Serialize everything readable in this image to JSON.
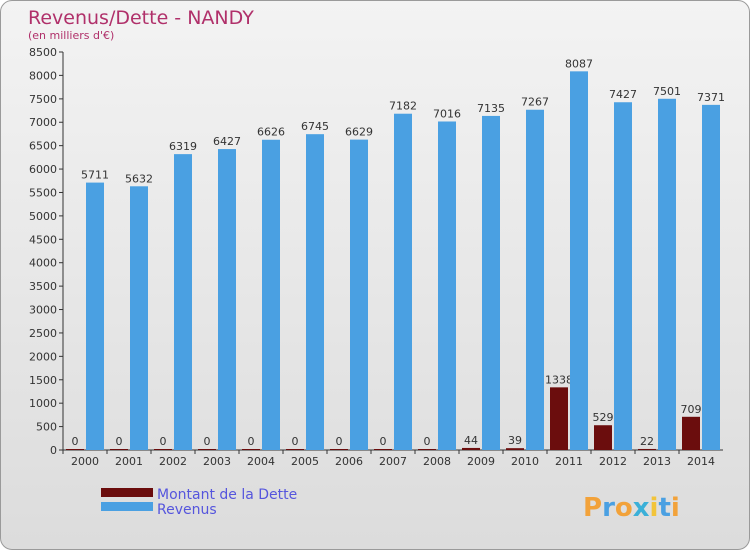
{
  "chart_data": {
    "type": "bar",
    "title": "Revenus/Dette - NANDY",
    "subtitle": "(en milliers d'€)",
    "categories": [
      "2000",
      "2001",
      "2002",
      "2003",
      "2004",
      "2005",
      "2006",
      "2007",
      "2008",
      "2009",
      "2010",
      "2011",
      "2012",
      "2013",
      "2014"
    ],
    "series": [
      {
        "name": "Montant de la Dette",
        "color": "#6b0d0d",
        "values": [
          0,
          0,
          0,
          0,
          0,
          0,
          0,
          0,
          0,
          44,
          39,
          1338,
          529,
          22,
          709
        ]
      },
      {
        "name": "Revenus",
        "color": "#4aa0e2",
        "values": [
          5711,
          5632,
          6319,
          6427,
          6626,
          6745,
          6629,
          7182,
          7016,
          7135,
          7267,
          8087,
          7427,
          7501,
          7371
        ]
      }
    ],
    "ylim": [
      0,
      8500
    ],
    "ytick_step": 500,
    "grid": false,
    "legend": "bottom-left"
  },
  "brand": {
    "letters": [
      "P",
      "r",
      "o",
      "x",
      "i",
      "t",
      "i"
    ],
    "colors": [
      "#f2a23a",
      "#4aa0e2",
      "#f2a23a",
      "#3bb0d8",
      "#f2c43a",
      "#4aa0e2",
      "#f2a23a"
    ]
  }
}
